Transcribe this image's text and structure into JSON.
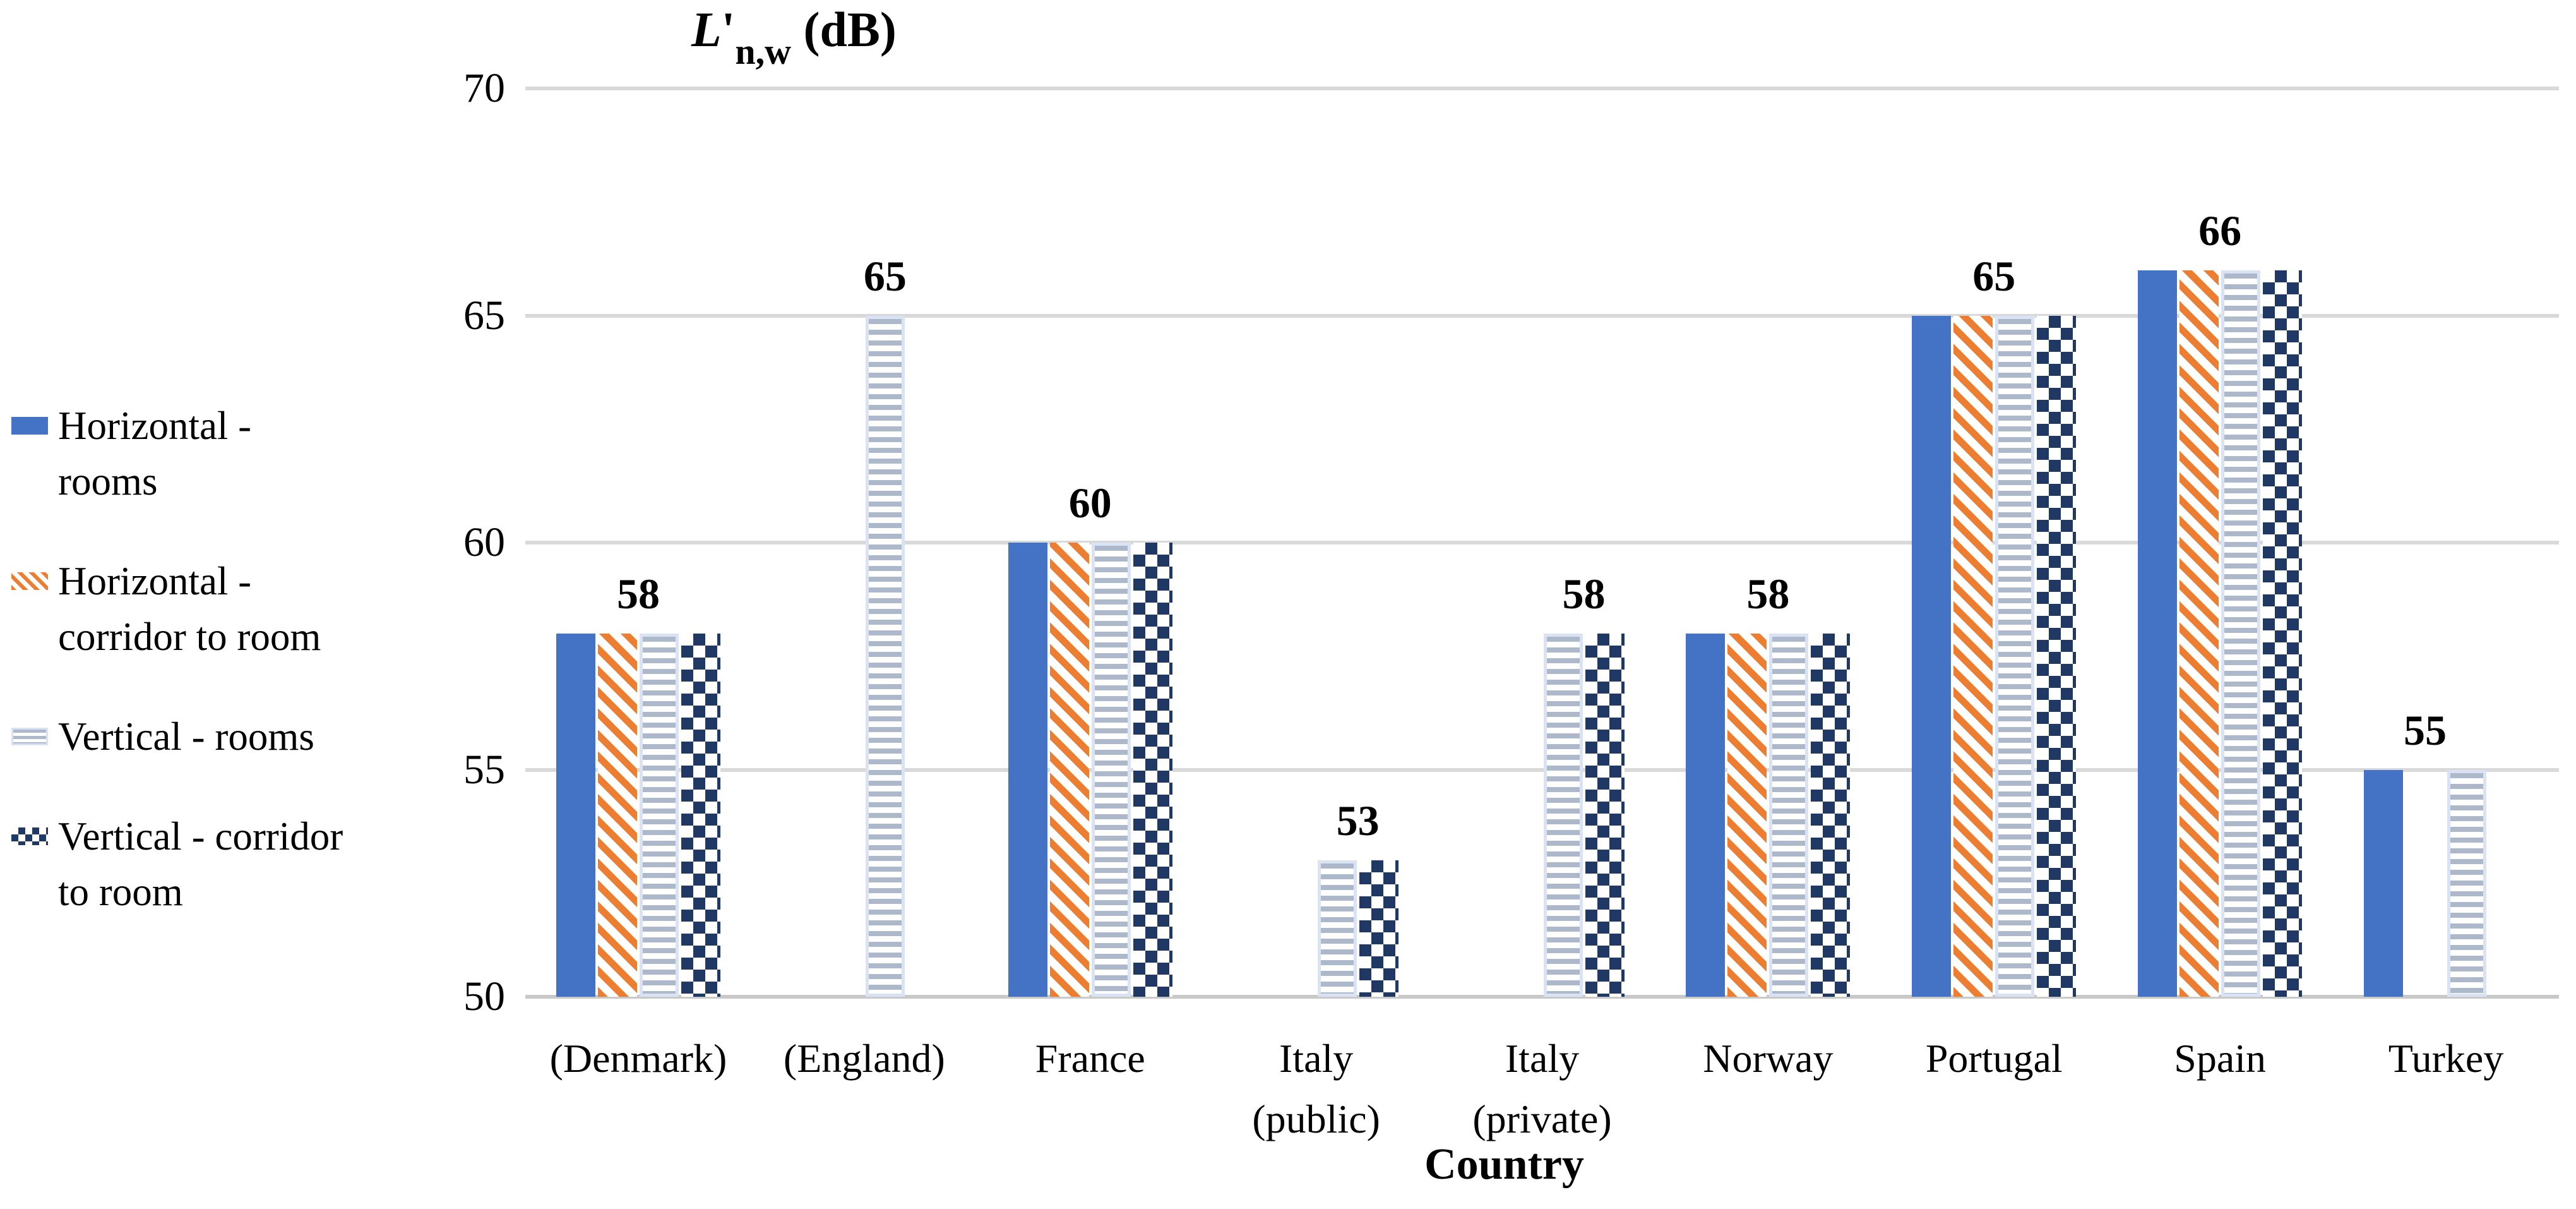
{
  "title": {
    "symbol": "L",
    "prime": "'",
    "subscript": "n,w",
    "suffix": " (dB)"
  },
  "chart_data": {
    "type": "bar",
    "title": "L'n,w (dB)",
    "xlabel": "Country",
    "ylabel": "L'n,w (dB)",
    "ylim": [
      50,
      70
    ],
    "yticks": [
      50,
      55,
      60,
      65,
      70
    ],
    "grid": true,
    "legend_position": "left",
    "categories": [
      "(Denmark)",
      "(England)",
      "France",
      "Italy (public)",
      "Italy (private)",
      "Norway",
      "Portugal",
      "Spain",
      "Turkey"
    ],
    "category_lines": [
      [
        "(Denmark)"
      ],
      [
        "(England)"
      ],
      [
        "France"
      ],
      [
        "Italy",
        "(public)"
      ],
      [
        "Italy",
        "(private)"
      ],
      [
        "Norway"
      ],
      [
        "Portugal"
      ],
      [
        "Spain"
      ],
      [
        "Turkey"
      ]
    ],
    "series": [
      {
        "name": "Horizontal - rooms",
        "legend_lines": [
          "Horizontal -",
          "rooms"
        ],
        "pattern": "solid",
        "color": "#4472C4",
        "values": [
          58,
          null,
          60,
          null,
          null,
          58,
          65,
          66,
          55
        ]
      },
      {
        "name": "Horizontal - corridor to room",
        "legend_lines": [
          "Horizontal -",
          "corridor to room"
        ],
        "pattern": "diagonal-stripes",
        "color": "#ED7D31",
        "values": [
          58,
          null,
          60,
          null,
          null,
          58,
          65,
          66,
          null
        ]
      },
      {
        "name": "Vertical - rooms",
        "legend_lines": [
          "Vertical - rooms"
        ],
        "pattern": "horizontal-stripes",
        "color": "#AEB8CB",
        "border_color": "#DAE3F3",
        "values": [
          58,
          65,
          60,
          53,
          58,
          58,
          65,
          66,
          55
        ]
      },
      {
        "name": "Vertical - corridor to room",
        "legend_lines": [
          "Vertical - corridor",
          "to room"
        ],
        "pattern": "checker",
        "color": "#1F3864",
        "values": [
          58,
          null,
          60,
          53,
          58,
          58,
          65,
          66,
          null
        ]
      }
    ],
    "data_labels": [
      58,
      65,
      60,
      53,
      58,
      58,
      65,
      66,
      55
    ],
    "colors": {
      "gridline": "#D9D9D9",
      "axisline": "#C9C9C9",
      "text": "#000000"
    }
  }
}
